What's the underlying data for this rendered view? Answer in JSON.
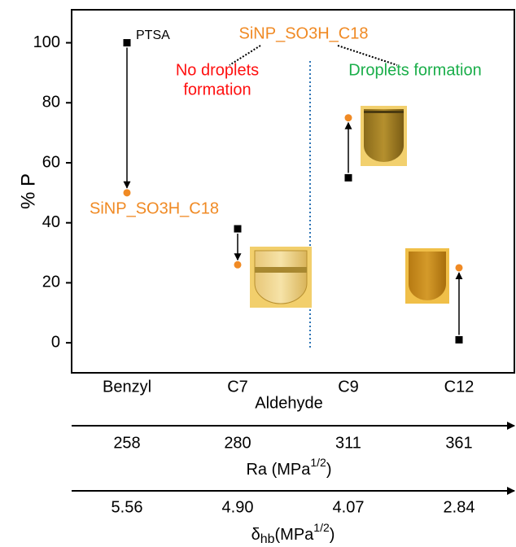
{
  "chart_data": {
    "type": "scatter",
    "categories": [
      "Benzyl",
      "C7",
      "C9",
      "C12"
    ],
    "xlabel": "Aldehyde",
    "ylabel": "% P",
    "ylim": [
      -10,
      111
    ],
    "yticks": [
      0,
      20,
      40,
      60,
      80,
      100
    ],
    "series": [
      {
        "name": "PTSA",
        "color": "#000000",
        "marker": "square",
        "values": [
          100,
          38,
          55,
          1
        ]
      },
      {
        "name": "SiNP_SO3H_C18",
        "color": "#f08a24",
        "marker": "circle",
        "values": [
          50,
          26,
          75,
          25
        ]
      }
    ],
    "annotations": {
      "top_label": "SiNP_SO3H_C18",
      "left_region": [
        "No droplets",
        "formation"
      ],
      "right_region": "Droplets formation"
    },
    "ra_axis": {
      "values": [
        258,
        280,
        311,
        361
      ],
      "label": "Ra (MPa",
      "label_sup": "1/2",
      "label_tail": ")"
    },
    "dhb_axis": {
      "values": [
        {
          "value": 5.56,
          "label": "5.56"
        },
        {
          "value": 4.9,
          "label": "4.90"
        },
        {
          "value": 4.07,
          "label": "4.07"
        },
        {
          "value": 2.84,
          "label": "2.84"
        }
      ],
      "label": "δ",
      "label_sub": "hb",
      "label_mid": "(MPa",
      "label_sup": "1/2",
      "label_tail": ")"
    }
  }
}
